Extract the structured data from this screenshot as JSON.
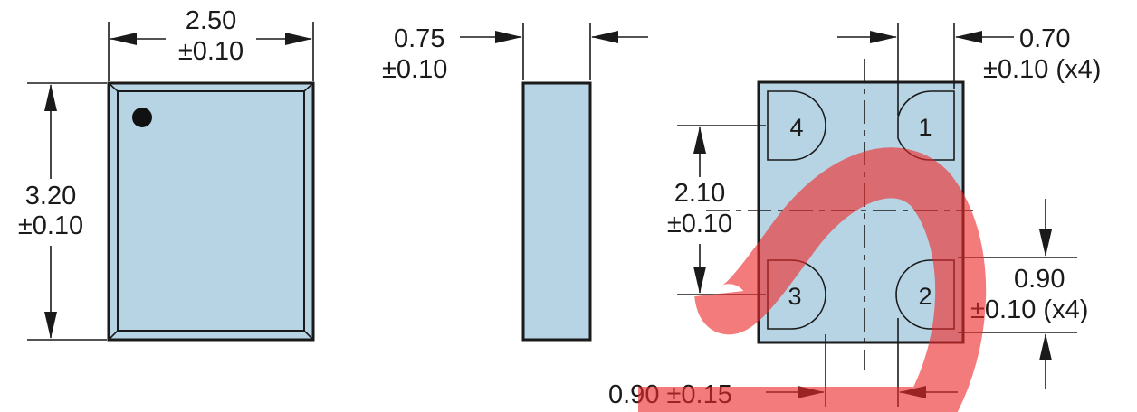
{
  "colors": {
    "body_fill": "#b7d4e4",
    "outline": "#1a1a1a",
    "pin1_dot": "#111111",
    "watermark": "#ee2a2a"
  },
  "top_view": {
    "width_value": "2.50",
    "width_tol": "±0.10",
    "height_value": "3.20",
    "height_tol": "±0.10"
  },
  "side_view": {
    "thickness_value": "0.75",
    "thickness_tol": "±0.10"
  },
  "bottom_view": {
    "pad_width_value": "0.70",
    "pad_width_tol": "±0.10 (x4)",
    "pitch_value": "2.10",
    "pitch_tol": "±0.10",
    "pad_height_value": "0.90",
    "pad_height_tol": "±0.10 (x4)",
    "pad_gap_label": "0.90 ±0.15",
    "pads": [
      "4",
      "1",
      "3",
      "2"
    ]
  },
  "watermark": {
    "description": "red strike-through stroke overlay",
    "icon": "red-slash-watermark-icon"
  }
}
